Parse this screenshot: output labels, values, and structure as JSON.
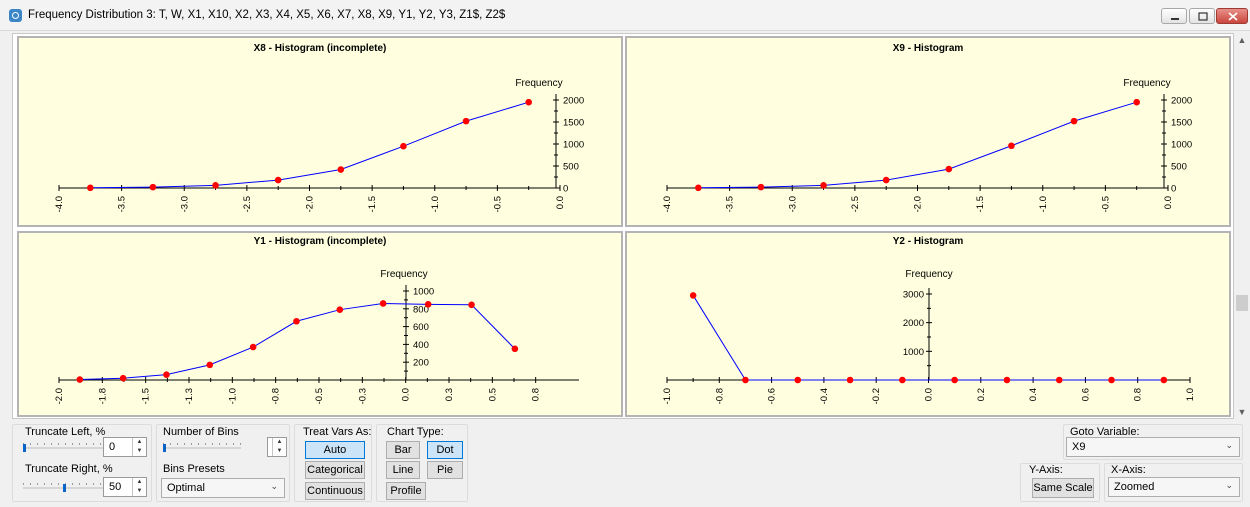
{
  "window": {
    "title": "Frequency Distribution 3: T, W, X1, X10, X2, X3, X4, X5, X6, X7, X8, X9, Y1, Y2, Y3, Z1$, Z2$",
    "controls": [
      "minimize-icon",
      "restore-icon",
      "close-icon"
    ]
  },
  "chart_data": [
    {
      "type": "line",
      "title": "X8 - Histogram (incomplete)",
      "ylabel": "Frequency",
      "x_ticks": [
        "-4.0",
        "-3.5",
        "-3.0",
        "-2.5",
        "-2.0",
        "-1.5",
        "-1.0",
        "-0.5",
        "0.0"
      ],
      "y_ticks": [
        "0",
        "500",
        "1000",
        "1500",
        "2000"
      ],
      "xlim": [
        -4.0,
        0.0
      ],
      "ylim": [
        0,
        2000
      ],
      "series": [
        {
          "color": "#0000ff",
          "marker_color": "#ff0000",
          "x": [
            -3.75,
            -3.25,
            -2.75,
            -2.25,
            -1.75,
            -1.25,
            -0.75,
            -0.25
          ],
          "y": [
            5,
            20,
            60,
            180,
            420,
            950,
            1520,
            1950
          ]
        }
      ]
    },
    {
      "type": "line",
      "title": "X9 - Histogram",
      "ylabel": "Frequency",
      "x_ticks": [
        "-4.0",
        "-3.5",
        "-3.0",
        "-2.5",
        "-2.0",
        "-1.5",
        "-1.0",
        "-0.5",
        "0.0"
      ],
      "y_ticks": [
        "0",
        "500",
        "1000",
        "1500",
        "2000"
      ],
      "xlim": [
        -4.0,
        0.0
      ],
      "ylim": [
        0,
        2000
      ],
      "series": [
        {
          "color": "#0000ff",
          "marker_color": "#ff0000",
          "x": [
            -3.75,
            -3.25,
            -2.75,
            -2.25,
            -1.75,
            -1.25,
            -0.75,
            -0.25
          ],
          "y": [
            5,
            20,
            60,
            180,
            430,
            960,
            1520,
            1950
          ]
        }
      ]
    },
    {
      "type": "line",
      "title": "Y1 - Histogram (incomplete)",
      "ylabel": "Frequency",
      "x_ticks": [
        "-2.0",
        "-1.8",
        "-1.5",
        "-1.3",
        "-1.0",
        "-0.8",
        "-0.5",
        "-0.3",
        "0.0",
        "0.3",
        "0.5",
        "0.8"
      ],
      "x_tick_values": [
        -2.0,
        -1.75,
        -1.5,
        -1.25,
        -1.0,
        -0.75,
        -0.5,
        -0.25,
        0.0,
        0.25,
        0.5,
        0.75
      ],
      "y_ticks": [
        "200",
        "400",
        "600",
        "800",
        "1000"
      ],
      "xlim": [
        -2.0,
        1.0
      ],
      "ylim": [
        0,
        1000
      ],
      "series": [
        {
          "color": "#0000ff",
          "marker_color": "#ff0000",
          "x": [
            -1.88,
            -1.63,
            -1.38,
            -1.13,
            -0.88,
            -0.63,
            -0.38,
            -0.13,
            0.13,
            0.38,
            0.63
          ],
          "y": [
            5,
            20,
            60,
            170,
            370,
            660,
            790,
            860,
            850,
            845,
            350
          ]
        }
      ]
    },
    {
      "type": "line",
      "title": "Y2 - Histogram",
      "ylabel": "Frequency",
      "x_ticks": [
        "-1.0",
        "-0.8",
        "-0.6",
        "-0.4",
        "-0.2",
        "0.0",
        "0.2",
        "0.4",
        "0.6",
        "0.8",
        "1.0"
      ],
      "y_ticks": [
        "1000",
        "2000",
        "3000"
      ],
      "xlim": [
        -1.0,
        1.0
      ],
      "ylim": [
        0,
        3000
      ],
      "series": [
        {
          "color": "#0000ff",
          "marker_color": "#ff0000",
          "x": [
            -0.9,
            -0.7,
            -0.5,
            -0.3,
            -0.1,
            0.1,
            0.3,
            0.5,
            0.7,
            0.9
          ],
          "y": [
            2950,
            0,
            0,
            0,
            0,
            0,
            0,
            0,
            0,
            0
          ]
        }
      ]
    }
  ],
  "controls": {
    "truncate_left": {
      "label": "Truncate  Left, %",
      "value": "0",
      "level": 0
    },
    "truncate_right": {
      "label": "Truncate Right, %",
      "value": "50",
      "level": 0.5
    },
    "number_of_bins": {
      "label": "Number of Bins",
      "value": "",
      "level": 0
    },
    "bins_presets": {
      "label": "Bins Presets",
      "value": "Optimal"
    },
    "treat_vars": {
      "label": "Treat Vars As:",
      "options": [
        "Auto",
        "Categorical",
        "Continuous"
      ],
      "selected": "Auto"
    },
    "chart_type": {
      "label": "Chart Type:",
      "options": [
        "Bar",
        "Dot",
        "Line",
        "Pie",
        "Profile"
      ],
      "selected": "Dot"
    },
    "goto_variable": {
      "label": "Goto Variable:",
      "value": "X9"
    },
    "y_axis": {
      "label": "Y-Axis:",
      "button": "Same Scale"
    },
    "x_axis": {
      "label": "X-Axis:",
      "value": "Zoomed"
    }
  }
}
